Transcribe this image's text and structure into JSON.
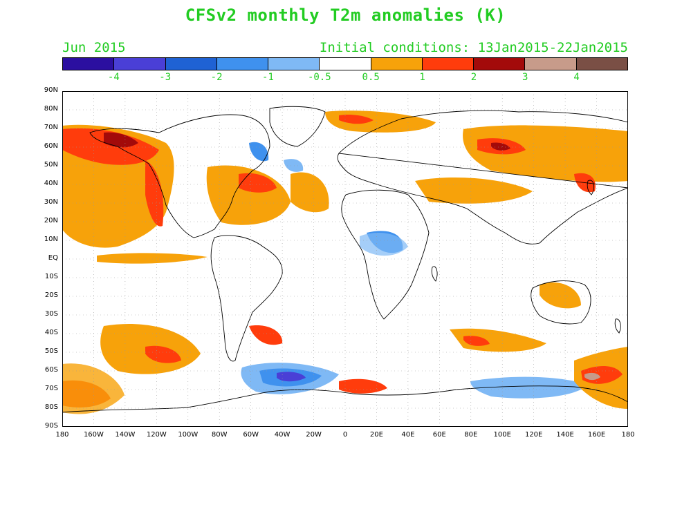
{
  "title": "CFSv2 monthly T2m anomalies (K)",
  "month": "Jun 2015",
  "initial_conditions": "Initial conditions: 13Jan2015-22Jan2015",
  "colorbar": {
    "colors": [
      "#2b0fa0",
      "#4a3fd6",
      "#1f62d4",
      "#3f91ee",
      "#7fb9f5",
      "#ffffff",
      "#f7a20a",
      "#ff3c0c",
      "#a30a0a",
      "#c79b8a",
      "#7a4f45"
    ],
    "labels": [
      "-4",
      "-3",
      "-2",
      "-1",
      "-0.5",
      "0.5",
      "1",
      "2",
      "3",
      "4"
    ]
  },
  "lat_labels": [
    "90N",
    "80N",
    "70N",
    "60N",
    "50N",
    "40N",
    "30N",
    "20N",
    "10N",
    "EQ",
    "10S",
    "20S",
    "30S",
    "40S",
    "50S",
    "60S",
    "70S",
    "80S",
    "90S"
  ],
  "lon_labels": [
    "180",
    "160W",
    "140W",
    "120W",
    "100W",
    "80W",
    "60W",
    "40W",
    "20W",
    "0",
    "20E",
    "40E",
    "60E",
    "80E",
    "100E",
    "120E",
    "140E",
    "160E",
    "180"
  ]
}
